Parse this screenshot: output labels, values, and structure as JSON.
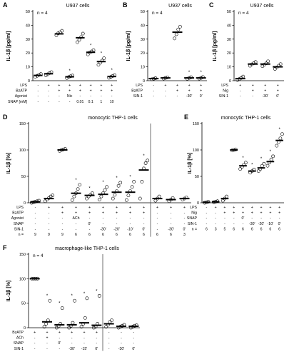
{
  "chart_data": [
    {
      "panel": "A",
      "type": "scatter",
      "title": "U937 cells",
      "n_label": "n = 4",
      "ylabel": "IL-1β [pg/ml]",
      "yticks": [
        "0",
        "10",
        "20",
        "30",
        "40",
        "50"
      ],
      "ylim": [
        0,
        50
      ],
      "rows": [
        {
          "label": "LPS",
          "cells": [
            "-",
            "+",
            "+",
            "+",
            "+",
            "+",
            "+",
            "+"
          ]
        },
        {
          "label": "BzATP",
          "cells": [
            "-",
            "-",
            "+",
            "+",
            "+",
            "+",
            "+",
            "+"
          ]
        },
        {
          "label": "Agonist",
          "cells": [
            "-",
            "-",
            "-",
            "Nic",
            "-",
            "-",
            "-",
            "-"
          ]
        },
        {
          "label": "SNAP [mM]",
          "cells": [
            "-",
            "-",
            "-",
            "-",
            "0.01",
            "0.1",
            "1",
            "10"
          ]
        }
      ],
      "groups": [
        {
          "mean": 3.8,
          "points": [
            2.8,
            3.5,
            4.2,
            4.8
          ],
          "sig": ""
        },
        {
          "mean": 5.0,
          "points": [
            3.9,
            4.6,
            5.5,
            6.2
          ],
          "sig": ""
        },
        {
          "mean": 33.8,
          "points": [
            32.8,
            34.2,
            35.0,
            36.0
          ],
          "sig": ""
        },
        {
          "mean": 2.8,
          "points": [
            1.9,
            2.6,
            3.2,
            3.7
          ],
          "sig": "*"
        },
        {
          "mean": 31.0,
          "points": [
            27.8,
            29.5,
            31.5,
            34.0
          ],
          "sig": ""
        },
        {
          "mean": 20.5,
          "points": [
            19.0,
            20.3,
            21.1,
            22.0
          ],
          "sig": "*"
        },
        {
          "mean": 13.8,
          "points": [
            11.5,
            13.0,
            14.5,
            16.2
          ],
          "sig": "*"
        },
        {
          "mean": 3.0,
          "points": [
            2.1,
            2.7,
            3.4,
            4.0
          ],
          "sig": "*"
        }
      ]
    },
    {
      "panel": "B",
      "type": "scatter",
      "title": "U937 cells",
      "n_label": "n = 4",
      "ylabel": "IL-1β [pg/ml]",
      "yticks": [
        "0",
        "10",
        "20",
        "30",
        "40",
        "50"
      ],
      "ylim": [
        0,
        50
      ],
      "rows": [
        {
          "label": "LPS",
          "cells": [
            "-",
            "+",
            "+",
            "+",
            "+"
          ]
        },
        {
          "label": "BzATP",
          "cells": [
            "-",
            "-",
            "+",
            "+",
            "+"
          ]
        },
        {
          "label": "SIN-1",
          "cells": [
            "-",
            "-",
            "-",
            "-30'",
            "0'"
          ]
        }
      ],
      "groups": [
        {
          "mean": 1.5,
          "points": [
            1.0,
            1.4,
            1.8
          ],
          "sig": ""
        },
        {
          "mean": 2.0,
          "points": [
            1.5,
            2.0,
            2.4
          ],
          "sig": ""
        },
        {
          "mean": 35.0,
          "points": [
            30.5,
            33.5,
            37.0,
            39.0
          ],
          "sig": ""
        },
        {
          "mean": 2.0,
          "points": [
            1.4,
            2.0,
            2.5
          ],
          "sig": "*"
        },
        {
          "mean": 2.0,
          "points": [
            1.5,
            2.0,
            2.6
          ],
          "sig": "*"
        }
      ]
    },
    {
      "panel": "C",
      "type": "scatter",
      "title": "U937 cells",
      "n_label": "n = 4",
      "ylabel": "IL-1β [pg/ml]",
      "yticks": [
        "0",
        "10",
        "20",
        "30",
        "40",
        "50"
      ],
      "ylim": [
        0,
        50
      ],
      "rows": [
        {
          "label": "LPS",
          "cells": [
            "+",
            "+",
            "+",
            "+"
          ]
        },
        {
          "label": "Nig",
          "cells": [
            "-",
            "+",
            "+",
            "+"
          ]
        },
        {
          "label": "SIN-1",
          "cells": [
            "-",
            "-",
            "-30'",
            "0'"
          ]
        }
      ],
      "groups": [
        {
          "mean": 1.5,
          "points": [
            0.5,
            1.2,
            2.0,
            3.0
          ],
          "sig": ""
        },
        {
          "mean": 12.0,
          "points": [
            10.8,
            11.8,
            12.6,
            13.5
          ],
          "sig": ""
        },
        {
          "mean": 12.0,
          "points": [
            10.5,
            11.5,
            12.5,
            14.0
          ],
          "sig": ""
        },
        {
          "mean": 10.0,
          "points": [
            8.5,
            9.5,
            10.8,
            12.0
          ],
          "sig": ""
        }
      ]
    },
    {
      "panel": "D",
      "type": "scatter",
      "title": "monocytic THP-1 cells",
      "ylabel": "IL-1β [%]",
      "yticks": [
        "0",
        "50",
        "100",
        "150"
      ],
      "ylim": [
        0,
        150
      ],
      "rows": [
        {
          "label": "LPS",
          "cells": [
            "-",
            "+",
            "+",
            "+",
            "+",
            "+",
            "+",
            "+",
            "+",
            "+",
            "+",
            "+"
          ]
        },
        {
          "label": "BzATP",
          "cells": [
            "-",
            "-",
            "+",
            "+",
            "+",
            "+",
            "+",
            "+",
            "+",
            "-",
            "-",
            "-"
          ]
        },
        {
          "label": "Agonist",
          "cells": [
            "-",
            "-",
            "-",
            "ACh",
            "-",
            "-",
            "-",
            "-",
            "-",
            "-",
            "-",
            "-"
          ]
        },
        {
          "label": "SNAP",
          "cells": [
            "-",
            "-",
            "-",
            "-",
            "0'",
            "-",
            "-",
            "-",
            "-",
            "-",
            "-",
            "-"
          ]
        },
        {
          "label": "SIN-1",
          "cells": [
            "-",
            "-",
            "-",
            "-",
            "-",
            "-30'",
            "-20'",
            "-10'",
            "0'",
            "-",
            "-30'",
            "0'"
          ]
        },
        {
          "label": "n =",
          "cells": [
            "9",
            "9",
            "9",
            "6",
            "6",
            "6",
            "6",
            "6",
            "6",
            "6",
            "6",
            "3"
          ]
        }
      ],
      "groups": [
        {
          "mean": 2,
          "points": [
            0,
            1,
            2,
            3,
            4
          ],
          "sig": ""
        },
        {
          "mean": 8,
          "points": [
            3,
            6,
            9,
            12,
            14
          ],
          "sig": ""
        },
        {
          "mean": 100,
          "points": [
            98,
            100,
            101,
            102
          ],
          "sig": ""
        },
        {
          "mean": 18,
          "points": [
            5,
            12,
            18,
            26,
            34
          ],
          "sig": "*"
        },
        {
          "mean": 14,
          "points": [
            8,
            12,
            15,
            18
          ],
          "sig": "*"
        },
        {
          "mean": 16,
          "points": [
            6,
            12,
            18,
            24,
            30
          ],
          "sig": "*"
        },
        {
          "mean": 20,
          "points": [
            8,
            15,
            22,
            32,
            38
          ],
          "sig": "*"
        },
        {
          "mean": 20,
          "points": [
            5,
            14,
            22,
            30,
            40
          ],
          "sig": "*"
        },
        {
          "mean": 62,
          "points": [
            8,
            40,
            65,
            75,
            80
          ],
          "sig": "*"
        },
        {
          "mean": 8,
          "points": [
            4,
            8,
            12
          ],
          "sig": ""
        },
        {
          "mean": 6,
          "points": [
            3,
            6,
            9
          ],
          "sig": ""
        },
        {
          "mean": 8,
          "points": [
            6,
            8,
            10
          ],
          "sig": ""
        }
      ]
    },
    {
      "panel": "E",
      "type": "scatter",
      "title": "monocytic THP-1 cells",
      "ylabel": "IL-1β [%]",
      "yticks": [
        "0",
        "50",
        "100",
        "150"
      ],
      "ylim": [
        0,
        150
      ],
      "rows": [
        {
          "label": "LPS",
          "cells": [
            "-",
            "+",
            "+",
            "+",
            "+",
            "+",
            "+",
            "+",
            "+"
          ]
        },
        {
          "label": "Nig",
          "cells": [
            "-",
            "-",
            "+",
            "+",
            "+",
            "+",
            "+",
            "+",
            "+"
          ]
        },
        {
          "label": "SNAP",
          "cells": [
            "-",
            "-",
            "-",
            "-",
            "0'",
            "-",
            "-",
            "-",
            "-"
          ]
        },
        {
          "label": "SIN-1",
          "cells": [
            "-",
            "-",
            "-",
            "-",
            "-",
            "-30'",
            "-20'",
            "-10'",
            "0'"
          ]
        },
        {
          "label": "n =",
          "cells": [
            "6",
            "3",
            "5",
            "6",
            "6",
            "6",
            "6",
            "6",
            "6"
          ]
        }
      ],
      "groups": [
        {
          "mean": 1,
          "points": [
            0,
            1,
            2
          ],
          "sig": ""
        },
        {
          "mean": 2,
          "points": [
            1,
            2,
            3
          ],
          "sig": ""
        },
        {
          "mean": 8,
          "points": [
            4,
            8,
            12
          ],
          "sig": ""
        },
        {
          "mean": 100,
          "points": [
            99,
            100,
            101
          ],
          "sig": ""
        },
        {
          "mean": 70,
          "points": [
            64,
            68,
            72,
            76
          ],
          "sig": "*"
        },
        {
          "mean": 60,
          "points": [
            57,
            60,
            63
          ],
          "sig": "*"
        },
        {
          "mean": 66,
          "points": [
            60,
            64,
            70,
            74
          ],
          "sig": "*"
        },
        {
          "mean": 78,
          "points": [
            70,
            76,
            82,
            88
          ],
          "sig": "*"
        },
        {
          "mean": 118,
          "points": [
            108,
            115,
            122,
            130
          ],
          "sig": "*"
        }
      ]
    },
    {
      "panel": "F",
      "type": "scatter",
      "title": "macrophage-like THP-1 cells",
      "n_label": "n = 4",
      "ylabel": "IL-1β [%]",
      "yticks": [
        "0",
        "50",
        "100",
        "150"
      ],
      "ylim": [
        0,
        150
      ],
      "rows": [
        {
          "label": "BzATP",
          "cells": [
            "+",
            "+",
            "+",
            "+",
            "+",
            "+",
            "-",
            "-",
            "-"
          ]
        },
        {
          "label": "ACh",
          "cells": [
            "-",
            "+",
            "-",
            "-",
            "-",
            "-",
            "-",
            "-",
            "-"
          ]
        },
        {
          "label": "SNAP",
          "cells": [
            "-",
            "-",
            "0'",
            "-",
            "-",
            "-",
            "-",
            "-",
            "-"
          ]
        },
        {
          "label": "SIN-1",
          "cells": [
            "-",
            "-",
            "-",
            "-30'",
            "-15'",
            "0'",
            "-",
            "-30'",
            "0'"
          ]
        }
      ],
      "groups": [
        {
          "mean": 100,
          "points": [
            100,
            100,
            100,
            100
          ],
          "sig": ""
        },
        {
          "mean": 12,
          "points": [
            2,
            8,
            15,
            55
          ],
          "sig": "*"
        },
        {
          "mean": 6,
          "points": [
            0,
            3,
            8,
            40
          ],
          "sig": "*"
        },
        {
          "mean": 6,
          "points": [
            0,
            4,
            10,
            55
          ],
          "sig": "*"
        },
        {
          "mean": 10,
          "points": [
            2,
            8,
            20,
            60
          ],
          "sig": "*"
        },
        {
          "mean": 5,
          "points": [
            0,
            2,
            8,
            65
          ],
          "sig": "*"
        },
        {
          "mean": 8,
          "points": [
            2,
            6,
            12,
            15
          ],
          "sig": ""
        },
        {
          "mean": 3,
          "points": [
            0,
            2,
            4,
            6
          ],
          "sig": ""
        },
        {
          "mean": 3,
          "points": [
            0,
            2,
            4,
            5
          ],
          "sig": ""
        }
      ]
    }
  ]
}
